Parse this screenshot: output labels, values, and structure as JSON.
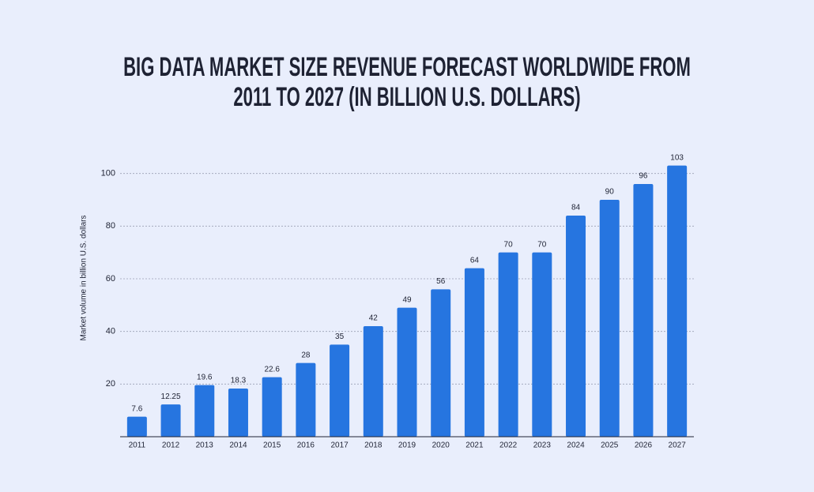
{
  "chart_data": {
    "type": "bar",
    "title": "BIG DATA MARKET SIZE REVENUE FORECAST WORLDWIDE FROM 2011 TO 2027 (IN BILLION U.S. DOLLARS)",
    "y_label": "Market volume in billion U.S. dollars",
    "categories": [
      "2011",
      "2012",
      "2013",
      "2014",
      "2015",
      "2016",
      "2017",
      "2018",
      "2019",
      "2020",
      "2021",
      "2022",
      "2023",
      "2024",
      "2025",
      "2026",
      "2027"
    ],
    "values": [
      7.6,
      12.25,
      19.6,
      18.3,
      22.6,
      28,
      35,
      42,
      49,
      56,
      64,
      70,
      70,
      84,
      90,
      96,
      103
    ],
    "color": "#2675e0",
    "ylim": [
      0,
      105
    ],
    "yticks": [
      20,
      40,
      60,
      80,
      100
    ],
    "grid": true
  }
}
